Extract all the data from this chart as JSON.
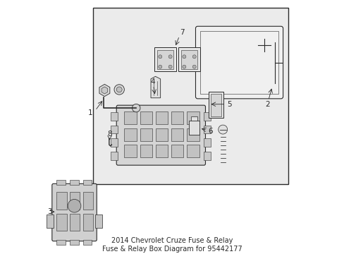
{
  "bg_color": "#e8e8e8",
  "fg_color": "#2a2a2a",
  "white": "#ffffff",
  "title": "2014 Chevrolet Cruze Fuse & Relay\nFuse & Relay Box Diagram for 95442177",
  "title_fontsize": 7,
  "box_bg": "#ebebeb"
}
